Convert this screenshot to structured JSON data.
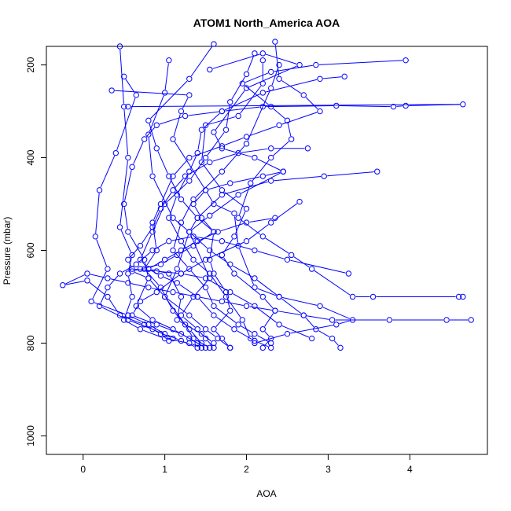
{
  "chart_data": {
    "type": "line",
    "title": "ATOM1 North_America AOA",
    "xlabel": "AOA",
    "ylabel": "Pressure (mbar)",
    "xlim": [
      -0.45,
      4.95
    ],
    "ylim": [
      1040,
      160
    ],
    "y_reversed": true,
    "x_ticks": [
      0,
      1,
      2,
      3,
      4
    ],
    "x_tick_labels": [
      "0",
      "1",
      "2",
      "3",
      "4"
    ],
    "y_ticks": [
      200,
      400,
      600,
      800,
      1000
    ],
    "y_tick_labels": [
      "200",
      "400",
      "600",
      "800",
      "1000"
    ],
    "grid": false,
    "legend": "none",
    "series_color": "#0000ff",
    "marker": "open-circle",
    "series": [
      {
        "points": [
          [
            0.45,
            160
          ],
          [
            0.5,
            290
          ],
          [
            0.55,
            400
          ],
          [
            0.45,
            550
          ],
          [
            0.6,
            610
          ],
          [
            0.55,
            650
          ],
          [
            0.6,
            700
          ],
          [
            0.5,
            750
          ],
          [
            0.7,
            770
          ],
          [
            1.0,
            790
          ],
          [
            1.3,
            800
          ],
          [
            1.45,
            810
          ]
        ]
      },
      {
        "points": [
          [
            1.05,
            190
          ],
          [
            1.0,
            260
          ],
          [
            0.8,
            350
          ],
          [
            0.85,
            440
          ],
          [
            1.1,
            530
          ],
          [
            1.3,
            560
          ],
          [
            1.55,
            660
          ],
          [
            1.35,
            700
          ],
          [
            1.2,
            740
          ],
          [
            1.4,
            770
          ],
          [
            1.5,
            790
          ],
          [
            1.6,
            810
          ]
        ]
      },
      {
        "points": [
          [
            0.35,
            255
          ],
          [
            1.3,
            265
          ],
          [
            1.2,
            300
          ],
          [
            1.1,
            360
          ],
          [
            1.5,
            470
          ],
          [
            1.6,
            500
          ],
          [
            1.85,
            520
          ],
          [
            1.9,
            590
          ],
          [
            2.1,
            680
          ],
          [
            2.4,
            700
          ],
          [
            2.7,
            740
          ],
          [
            2.85,
            770
          ],
          [
            3.05,
            790
          ],
          [
            3.15,
            810
          ]
        ]
      },
      {
        "points": [
          [
            0.5,
            225
          ],
          [
            0.65,
            265
          ],
          [
            0.4,
            390
          ],
          [
            0.2,
            470
          ],
          [
            0.15,
            570
          ],
          [
            0.3,
            640
          ],
          [
            0.1,
            710
          ],
          [
            0.55,
            740
          ],
          [
            0.8,
            760
          ],
          [
            1.0,
            780
          ],
          [
            1.2,
            795
          ],
          [
            1.4,
            810
          ]
        ]
      },
      {
        "points": [
          [
            1.55,
            210
          ],
          [
            2.2,
            175
          ],
          [
            2.65,
            200
          ],
          [
            2.0,
            250
          ],
          [
            1.6,
            345
          ],
          [
            1.7,
            380
          ],
          [
            2.1,
            400
          ],
          [
            2.45,
            430
          ],
          [
            1.9,
            480
          ],
          [
            1.55,
            525
          ],
          [
            1.3,
            560
          ],
          [
            1.15,
            640
          ],
          [
            1.0,
            700
          ],
          [
            1.25,
            760
          ],
          [
            1.35,
            790
          ],
          [
            1.55,
            810
          ]
        ]
      },
      {
        "points": [
          [
            2.2,
            190
          ],
          [
            2.2,
            240
          ],
          [
            1.9,
            310
          ],
          [
            1.5,
            330
          ],
          [
            1.45,
            410
          ],
          [
            1.7,
            470
          ],
          [
            2.0,
            510
          ],
          [
            1.85,
            570
          ],
          [
            1.7,
            610
          ],
          [
            1.85,
            650
          ],
          [
            2.2,
            700
          ],
          [
            2.35,
            730
          ],
          [
            2.2,
            770
          ],
          [
            2.3,
            790
          ],
          [
            2.2,
            810
          ]
        ]
      },
      {
        "points": [
          [
            2.4,
            200
          ],
          [
            2.3,
            250
          ],
          [
            2.0,
            370
          ],
          [
            1.7,
            430
          ],
          [
            1.35,
            490
          ],
          [
            1.2,
            540
          ],
          [
            1.1,
            600
          ],
          [
            1.3,
            640
          ],
          [
            1.5,
            680
          ],
          [
            1.6,
            720
          ],
          [
            1.9,
            760
          ],
          [
            2.1,
            780
          ],
          [
            2.3,
            800
          ]
        ]
      },
      {
        "points": [
          [
            3.95,
            190
          ],
          [
            2.85,
            200
          ],
          [
            2.3,
            215
          ],
          [
            1.95,
            240
          ],
          [
            2.3,
            290
          ],
          [
            2.5,
            320
          ],
          [
            2.55,
            360
          ],
          [
            2.3,
            400
          ],
          [
            2.05,
            455
          ],
          [
            1.9,
            530
          ],
          [
            2.2,
            570
          ],
          [
            2.55,
            610
          ],
          [
            2.8,
            640
          ],
          [
            3.3,
            700
          ],
          [
            3.55,
            700
          ],
          [
            4.6,
            700
          ],
          [
            4.65,
            700
          ]
        ]
      },
      {
        "points": [
          [
            0.55,
            290
          ],
          [
            4.65,
            285
          ],
          [
            3.95,
            288
          ],
          [
            3.8,
            290
          ],
          [
            3.1,
            288
          ],
          [
            2.2,
            290
          ],
          [
            1.7,
            300
          ],
          [
            1.25,
            310
          ],
          [
            0.9,
            330
          ],
          [
            0.75,
            360
          ],
          [
            0.6,
            420
          ],
          [
            0.5,
            500
          ],
          [
            0.55,
            560
          ],
          [
            0.75,
            620
          ],
          [
            0.8,
            660
          ],
          [
            0.65,
            720
          ],
          [
            0.85,
            750
          ],
          [
            1.1,
            770
          ],
          [
            1.3,
            790
          ],
          [
            1.5,
            810
          ]
        ]
      },
      {
        "points": [
          [
            1.6,
            155
          ],
          [
            1.3,
            230
          ],
          [
            0.8,
            320
          ],
          [
            0.9,
            380
          ],
          [
            1.05,
            440
          ],
          [
            1.2,
            490
          ],
          [
            1.4,
            530
          ],
          [
            1.6,
            560
          ],
          [
            1.55,
            620
          ],
          [
            1.6,
            650
          ],
          [
            1.75,
            690
          ],
          [
            1.8,
            730
          ],
          [
            1.6,
            770
          ],
          [
            1.7,
            790
          ],
          [
            1.8,
            810
          ]
        ]
      },
      {
        "points": [
          [
            2.1,
            175
          ],
          [
            2.0,
            220
          ],
          [
            1.8,
            280
          ],
          [
            1.75,
            340
          ],
          [
            1.5,
            400
          ],
          [
            1.3,
            450
          ],
          [
            1.0,
            500
          ],
          [
            0.85,
            560
          ],
          [
            0.7,
            620
          ],
          [
            0.8,
            640
          ],
          [
            1.05,
            650
          ],
          [
            1.2,
            700
          ],
          [
            1.15,
            750
          ],
          [
            1.45,
            780
          ],
          [
            1.6,
            800
          ]
        ]
      },
      {
        "points": [
          [
            2.35,
            150
          ],
          [
            2.4,
            230
          ],
          [
            2.7,
            265
          ],
          [
            2.9,
            300
          ],
          [
            2.4,
            330
          ],
          [
            2.0,
            355
          ],
          [
            1.7,
            375
          ],
          [
            1.3,
            400
          ],
          [
            1.1,
            440
          ],
          [
            0.95,
            500
          ],
          [
            0.85,
            540
          ],
          [
            0.9,
            600
          ],
          [
            0.75,
            640
          ],
          [
            0.95,
            680
          ],
          [
            1.1,
            730
          ],
          [
            1.3,
            770
          ],
          [
            1.45,
            800
          ]
        ]
      },
      {
        "points": [
          [
            3.2,
            225
          ],
          [
            2.9,
            230
          ],
          [
            2.2,
            260
          ],
          [
            1.7,
            300
          ],
          [
            1.45,
            340
          ],
          [
            1.4,
            390
          ],
          [
            1.3,
            430
          ],
          [
            1.15,
            480
          ],
          [
            1.05,
            530
          ],
          [
            1.2,
            580
          ],
          [
            1.35,
            620
          ],
          [
            1.55,
            650
          ],
          [
            1.75,
            700
          ],
          [
            1.95,
            750
          ],
          [
            2.05,
            790
          ]
        ]
      },
      {
        "points": [
          [
            3.6,
            430
          ],
          [
            2.95,
            440
          ],
          [
            2.3,
            450
          ],
          [
            1.7,
            480
          ],
          [
            1.4,
            530
          ],
          [
            1.3,
            560
          ],
          [
            1.55,
            600
          ],
          [
            1.8,
            630
          ],
          [
            2.1,
            660
          ],
          [
            2.4,
            700
          ],
          [
            2.9,
            720
          ],
          [
            3.3,
            750
          ],
          [
            3.1,
            760
          ],
          [
            2.5,
            780
          ],
          [
            2.1,
            800
          ]
        ]
      },
      {
        "points": [
          [
            2.65,
            495
          ],
          [
            2.3,
            540
          ],
          [
            2.0,
            580
          ],
          [
            1.5,
            620
          ],
          [
            1.2,
            650
          ],
          [
            0.9,
            690
          ],
          [
            0.7,
            710
          ],
          [
            0.6,
            740
          ],
          [
            0.9,
            760
          ],
          [
            1.2,
            780
          ],
          [
            1.4,
            800
          ]
        ]
      },
      {
        "points": [
          [
            3.25,
            650
          ],
          [
            2.5,
            620
          ],
          [
            2.1,
            600
          ],
          [
            1.7,
            580
          ],
          [
            1.35,
            570
          ],
          [
            1.05,
            580
          ],
          [
            0.85,
            600
          ],
          [
            0.65,
            630
          ],
          [
            0.45,
            650
          ],
          [
            0.3,
            680
          ],
          [
            0.2,
            720
          ],
          [
            0.55,
            750
          ],
          [
            0.85,
            770
          ],
          [
            1.1,
            790
          ]
        ]
      },
      {
        "points": [
          [
            4.75,
            750
          ],
          [
            4.45,
            750
          ],
          [
            3.75,
            750
          ],
          [
            3.05,
            750
          ],
          [
            2.7,
            740
          ],
          [
            2.35,
            730
          ],
          [
            2.0,
            720
          ],
          [
            1.7,
            710
          ],
          [
            1.4,
            700
          ],
          [
            1.1,
            690
          ],
          [
            0.8,
            680
          ],
          [
            0.55,
            670
          ],
          [
            0.3,
            660
          ],
          [
            0.05,
            650
          ],
          [
            -0.25,
            675
          ],
          [
            0.05,
            665
          ],
          [
            0.3,
            700
          ],
          [
            0.45,
            740
          ],
          [
            0.75,
            760
          ],
          [
            0.95,
            780
          ],
          [
            1.05,
            795
          ]
        ]
      },
      {
        "points": [
          [
            2.45,
            430
          ],
          [
            2.2,
            440
          ],
          [
            1.8,
            455
          ],
          [
            1.5,
            470
          ],
          [
            1.35,
            500
          ],
          [
            1.45,
            530
          ],
          [
            1.6,
            560
          ],
          [
            1.35,
            590
          ],
          [
            1.15,
            610
          ],
          [
            0.95,
            630
          ],
          [
            0.7,
            640
          ],
          [
            0.6,
            645
          ],
          [
            0.8,
            660
          ],
          [
            1.0,
            700
          ],
          [
            1.3,
            740
          ],
          [
            1.5,
            770
          ],
          [
            1.65,
            790
          ],
          [
            1.8,
            810
          ]
        ]
      },
      {
        "points": [
          [
            2.35,
            530
          ],
          [
            2.0,
            540
          ],
          [
            1.65,
            560
          ],
          [
            1.4,
            580
          ],
          [
            1.2,
            600
          ],
          [
            1.0,
            620
          ],
          [
            0.8,
            640
          ],
          [
            0.95,
            655
          ],
          [
            1.15,
            670
          ],
          [
            1.4,
            700
          ],
          [
            1.6,
            740
          ],
          [
            1.85,
            770
          ],
          [
            2.1,
            795
          ],
          [
            2.3,
            810
          ]
        ]
      },
      {
        "points": [
          [
            2.75,
            380
          ],
          [
            2.3,
            380
          ],
          [
            1.9,
            390
          ],
          [
            1.55,
            410
          ],
          [
            1.25,
            440
          ],
          [
            1.1,
            470
          ],
          [
            0.95,
            510
          ],
          [
            0.85,
            550
          ],
          [
            0.7,
            590
          ],
          [
            0.55,
            620
          ],
          [
            0.6,
            640
          ],
          [
            0.9,
            645
          ],
          [
            1.2,
            650
          ],
          [
            1.5,
            660
          ],
          [
            1.8,
            690
          ],
          [
            2.1,
            720
          ],
          [
            2.4,
            760
          ],
          [
            2.8,
            790
          ]
        ]
      }
    ]
  }
}
